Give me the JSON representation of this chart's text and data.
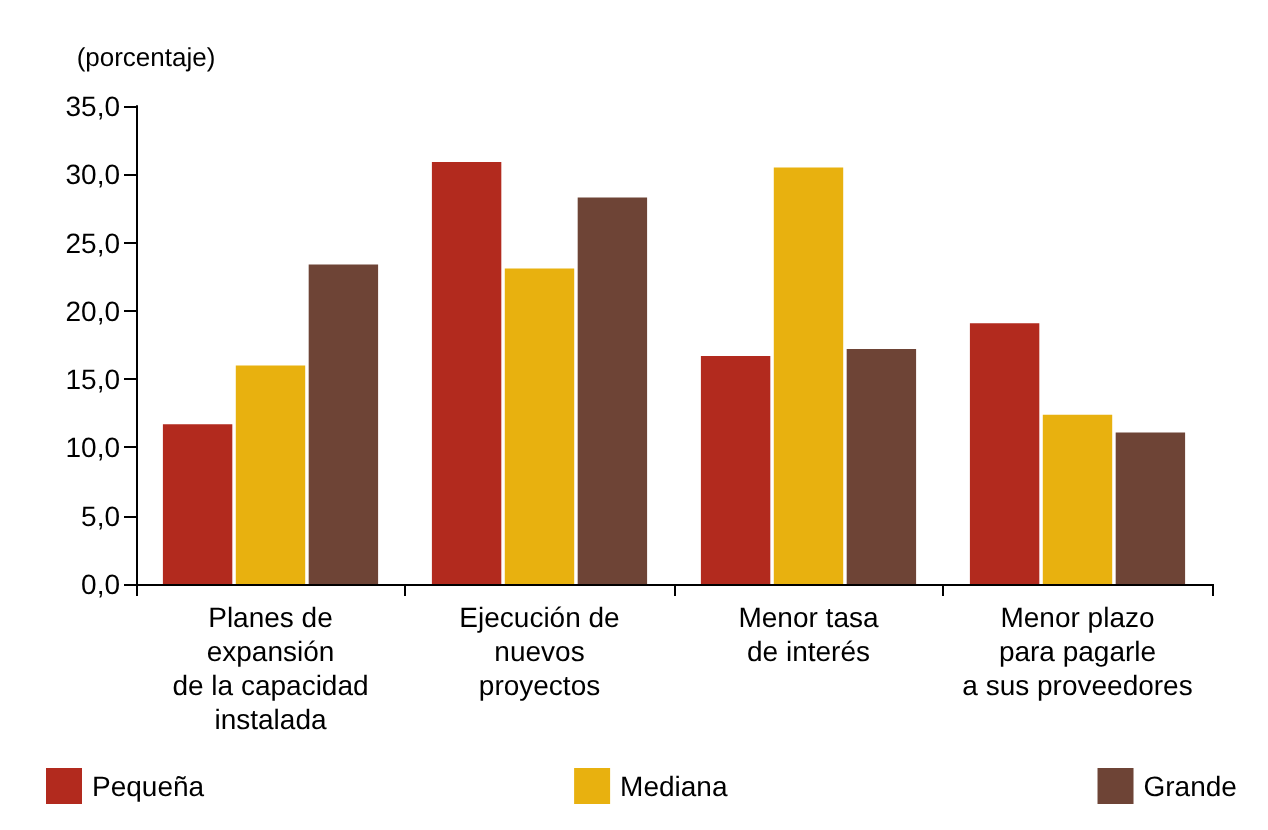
{
  "chart_data": {
    "type": "bar",
    "ylabel": "(porcentaje)",
    "categories": [
      "Planes de\nexpansión\nde la capacidad\ninstalada",
      "Ejecución de\nnuevos\nproyectos",
      "Menor tasa\nde interés",
      "Menor plazo\npara pagarle\na sus proveedores"
    ],
    "series": [
      {
        "name": "Pequeña",
        "color": "#b22a1e",
        "values": [
          11.7,
          30.9,
          16.7,
          19.1
        ]
      },
      {
        "name": "Mediana",
        "color": "#e8b10f",
        "values": [
          16.0,
          23.1,
          30.5,
          12.4
        ]
      },
      {
        "name": "Grande",
        "color": "#6e4436",
        "values": [
          23.4,
          28.3,
          17.2,
          11.1
        ]
      }
    ],
    "ylim": [
      0,
      35
    ],
    "yticks": [
      {
        "value": 0,
        "label": "0,0"
      },
      {
        "value": 5,
        "label": "5,0"
      },
      {
        "value": 10,
        "label": "10,0"
      },
      {
        "value": 15,
        "label": "15,0"
      },
      {
        "value": 20,
        "label": "20,0"
      },
      {
        "value": 25,
        "label": "25,0"
      },
      {
        "value": 30,
        "label": "30,0"
      },
      {
        "value": 35,
        "label": "35,0"
      }
    ],
    "grid": false,
    "legend": "bottom"
  }
}
